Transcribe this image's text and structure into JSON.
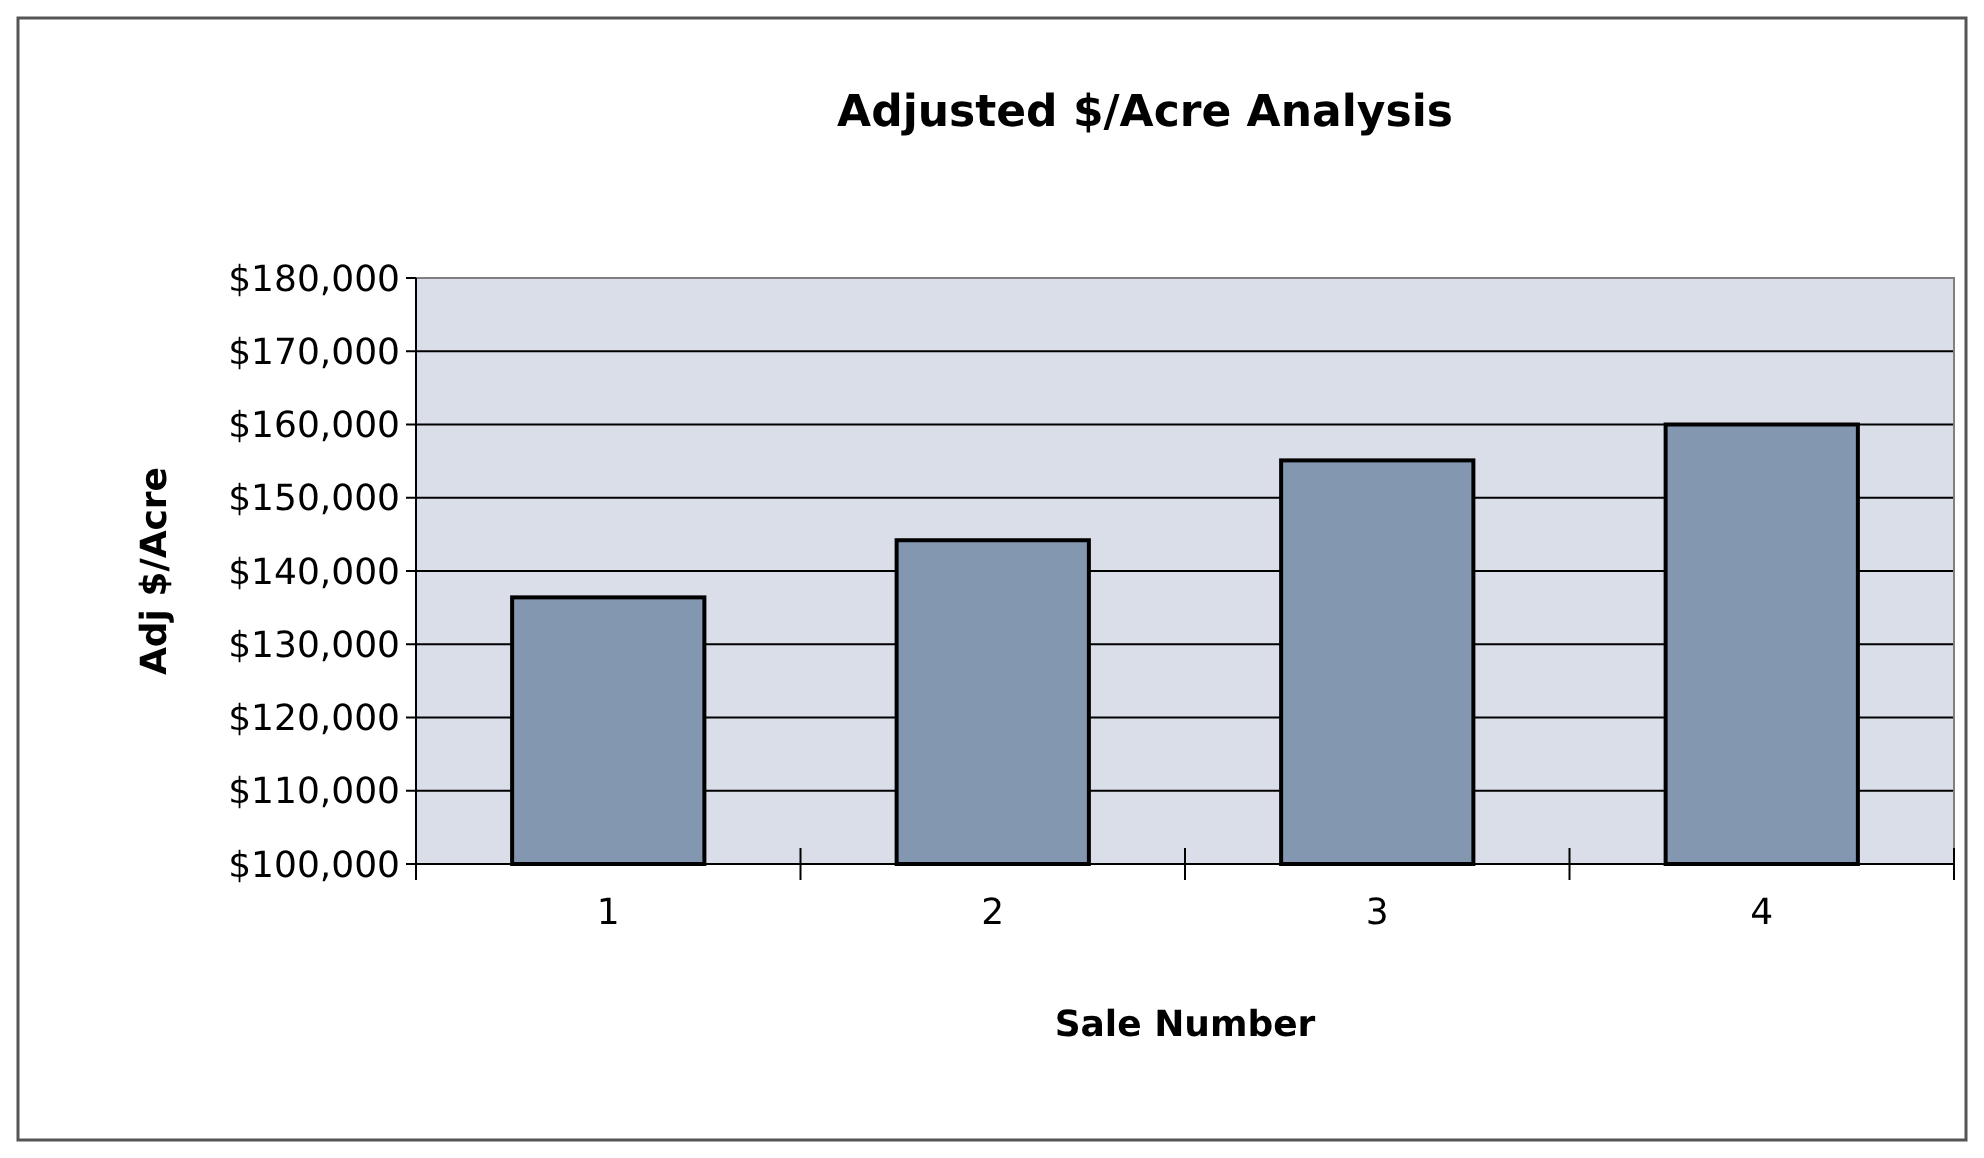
{
  "chart_data": {
    "type": "bar",
    "title": "Adjusted $/Acre Analysis",
    "xlabel": "Sale Number",
    "ylabel": "Adj $/Acre",
    "categories": [
      "1",
      "2",
      "3",
      "4"
    ],
    "values": [
      136400,
      144200,
      155100,
      160000
    ],
    "color": "#8497b0",
    "ylim": [
      100000,
      180000
    ],
    "yticks": [
      {
        "value": 100000,
        "label": "$100,000"
      },
      {
        "value": 110000,
        "label": "$110,000"
      },
      {
        "value": 120000,
        "label": "$120,000"
      },
      {
        "value": 130000,
        "label": "$130,000"
      },
      {
        "value": 140000,
        "label": "$140,000"
      },
      {
        "value": 150000,
        "label": "$150,000"
      },
      {
        "value": 160000,
        "label": "$160,000"
      },
      {
        "value": 170000,
        "label": "$170,000"
      },
      {
        "value": 180000,
        "label": "$180,000"
      }
    ],
    "grid": "y"
  }
}
